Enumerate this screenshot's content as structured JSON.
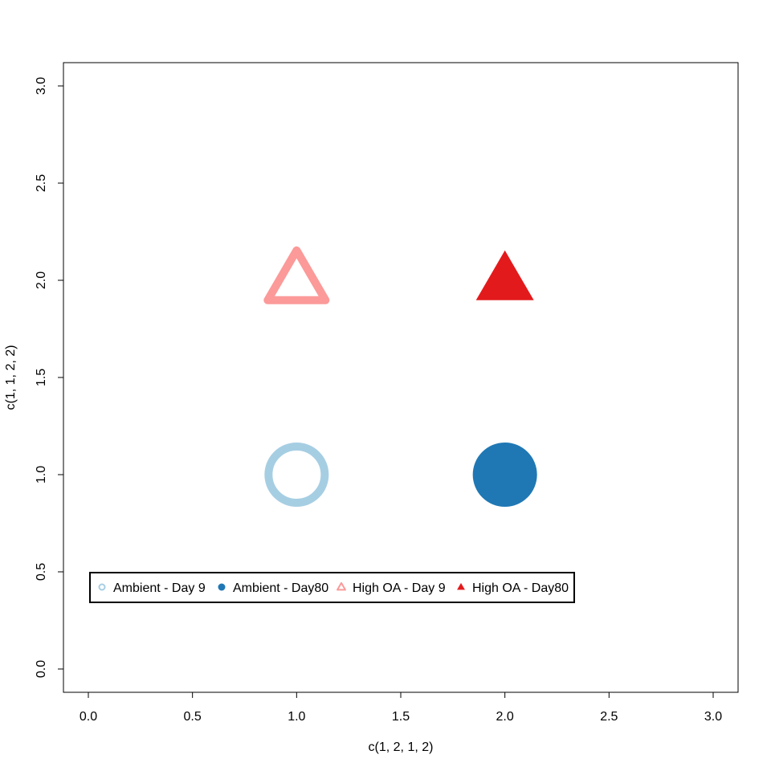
{
  "chart_data": {
    "type": "scatter",
    "title": "",
    "xlabel": "c(1, 2, 1, 2)",
    "ylabel": "c(1, 1, 2, 2)",
    "xlim": [
      0,
      3
    ],
    "ylim": [
      0,
      3
    ],
    "grid": false,
    "x_ticks": [
      "0.0",
      "0.5",
      "1.0",
      "1.5",
      "2.0",
      "2.5",
      "3.0"
    ],
    "y_ticks": [
      "0.0",
      "0.5",
      "1.0",
      "1.5",
      "2.0",
      "2.5",
      "3.0"
    ],
    "legend_position": "bottom-left",
    "series": [
      {
        "name": "Ambient - Day 9",
        "x": [
          1
        ],
        "y": [
          1
        ],
        "marker": "circle-open",
        "color": "#a6cee3"
      },
      {
        "name": "Ambient - Day80",
        "x": [
          2
        ],
        "y": [
          1
        ],
        "marker": "circle-filled",
        "color": "#1f78b4"
      },
      {
        "name": "High OA - Day 9",
        "x": [
          1
        ],
        "y": [
          2
        ],
        "marker": "triangle-open",
        "color": "#fb9a99"
      },
      {
        "name": "High OA - Day80",
        "x": [
          2
        ],
        "y": [
          2
        ],
        "marker": "triangle-filled",
        "color": "#e31a1c"
      }
    ]
  }
}
